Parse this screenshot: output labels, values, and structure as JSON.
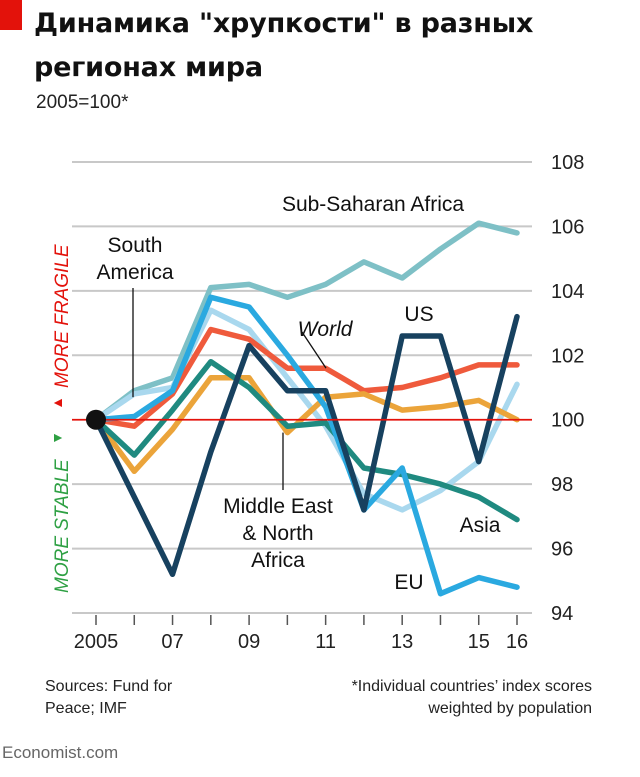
{
  "title": "Динамика \"хрупкости\" в разных регионах мира",
  "subtitle": "2005=100*",
  "sources": "Sources: Fund for\nPeace; IMF",
  "footnote": "*Individual countries’ index scores\nweighted by population",
  "brand": "Economist.com",
  "axis_labels": {
    "fragile": "MORE FRAGILE",
    "stable": "MORE STABLE"
  },
  "colors": {
    "accent_red": "#e3120b",
    "fragile": "#e3120b",
    "stable": "#2ea043",
    "grid": "#c8c8c8",
    "baseline": "#e3120b"
  },
  "chart_data": {
    "type": "line",
    "title": "Динамика \"хрупкости\" в разных регионах мира",
    "subtitle": "2005=100*",
    "x": [
      2005,
      2006,
      2007,
      2008,
      2009,
      2010,
      2011,
      2012,
      2013,
      2014,
      2015,
      2016
    ],
    "x_tick_values": [
      2005,
      2007,
      2009,
      2011,
      2013,
      2015,
      2016
    ],
    "x_tick_labels": [
      "2005",
      "07",
      "09",
      "11",
      "13",
      "15",
      "16"
    ],
    "xlim": [
      2005,
      2016
    ],
    "ylim": [
      94,
      108
    ],
    "y_ticks": [
      94,
      96,
      98,
      100,
      102,
      104,
      106,
      108
    ],
    "y_axis_side": "right",
    "baseline": 100,
    "grid": true,
    "series": [
      {
        "name": "Sub-Saharan Africa",
        "color": "#7ec0c6",
        "values": [
          100,
          100.9,
          101.3,
          104.1,
          104.2,
          103.8,
          104.2,
          104.9,
          104.4,
          105.3,
          106.1,
          105.8
        ],
        "label_lines": [
          "Sub-Saharan Africa"
        ]
      },
      {
        "name": "South America",
        "color": "#a9d8ee",
        "values": [
          100,
          100.8,
          101.0,
          103.4,
          102.8,
          101.3,
          99.8,
          97.7,
          97.2,
          97.8,
          98.7,
          101.1
        ],
        "label_lines": [
          "South",
          "America"
        ]
      },
      {
        "name": "World",
        "color": "#ef5a3c",
        "values": [
          100,
          99.8,
          100.8,
          102.8,
          102.5,
          101.6,
          101.6,
          100.9,
          101.0,
          101.3,
          101.7,
          101.7
        ],
        "label_lines": [
          "World"
        ]
      },
      {
        "name": "Middle East & North Africa",
        "color": "#eba43a",
        "values": [
          100,
          98.4,
          99.7,
          101.3,
          101.3,
          99.6,
          100.7,
          100.8,
          100.3,
          100.4,
          100.6,
          100.0
        ],
        "label_lines": [
          "Middle East",
          "& North",
          "Africa"
        ]
      },
      {
        "name": "Asia",
        "color": "#1f8a80",
        "values": [
          100,
          98.9,
          100.3,
          101.8,
          101.0,
          99.8,
          99.9,
          98.5,
          98.3,
          98.0,
          97.6,
          96.9
        ],
        "label_lines": [
          "Asia"
        ]
      },
      {
        "name": "EU",
        "color": "#2aa9e0",
        "values": [
          100,
          100.1,
          100.9,
          103.8,
          103.5,
          102.0,
          100.4,
          97.2,
          98.5,
          94.6,
          95.1,
          94.8
        ],
        "label_lines": [
          "EU"
        ]
      },
      {
        "name": "US",
        "color": "#17415f",
        "values": [
          100,
          97.6,
          95.2,
          99.0,
          102.3,
          100.9,
          100.9,
          97.2,
          102.6,
          102.6,
          98.7,
          103.2
        ],
        "label_lines": [
          "US"
        ]
      }
    ]
  }
}
